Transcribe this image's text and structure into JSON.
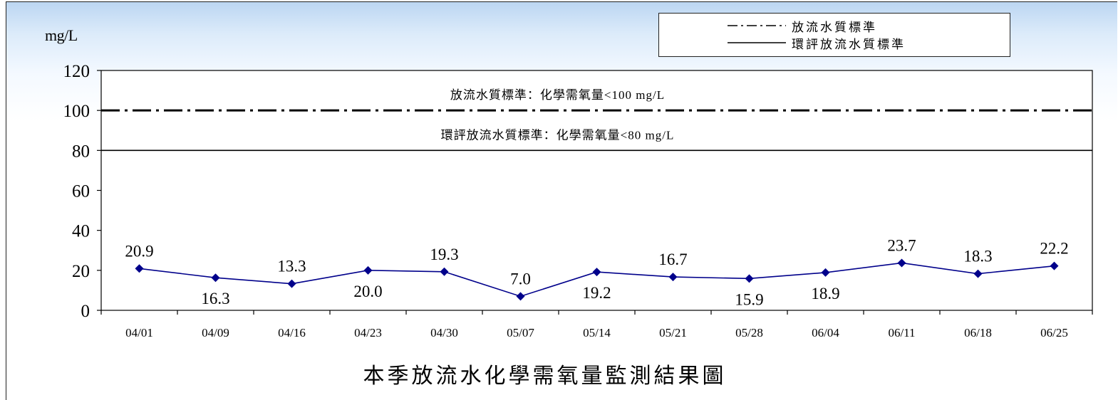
{
  "unit_label": "mg/L",
  "caption": "本季放流水化學需氧量監測結果圖",
  "legend": [
    {
      "label": "放流水質標準",
      "style": "dash-dot"
    },
    {
      "label": "環評放流水質標準",
      "style": "solid"
    }
  ],
  "colors": {
    "series": "#00008B",
    "reference": "#000000",
    "header": "#bcd6f2"
  },
  "chart_data": {
    "type": "line",
    "categories": [
      "04/01",
      "04/09",
      "04/16",
      "04/23",
      "04/30",
      "05/07",
      "05/14",
      "05/21",
      "05/28",
      "06/04",
      "06/11",
      "06/18",
      "06/25"
    ],
    "series": [
      {
        "values": [
          20.9,
          16.3,
          13.3,
          20.0,
          19.3,
          7.0,
          19.2,
          16.7,
          15.9,
          18.9,
          23.7,
          18.3,
          22.2
        ]
      }
    ],
    "data_labels": [
      "20.9",
      "16.3",
      "13.3",
      "20.0",
      "19.3",
      "7.0",
      "19.2",
      "16.7",
      "15.9",
      "18.9",
      "23.7",
      "18.3",
      "22.2"
    ],
    "label_position": [
      "above",
      "below",
      "above",
      "below",
      "above",
      "above",
      "below",
      "above",
      "below",
      "below",
      "above",
      "above",
      "above"
    ],
    "ylim": [
      0,
      120
    ],
    "yticks": [
      0,
      20,
      40,
      60,
      80,
      100,
      120
    ],
    "marker": "diamond",
    "reference_lines": [
      {
        "value": 100,
        "style": "dash-dot",
        "label": "放流水質標準：化學需氧量<100 mg/L"
      },
      {
        "value": 80,
        "style": "solid",
        "label": "環評放流水質標準：化學需氧量<80 mg/L"
      }
    ],
    "grid": false,
    "legend_position": "top-right"
  }
}
